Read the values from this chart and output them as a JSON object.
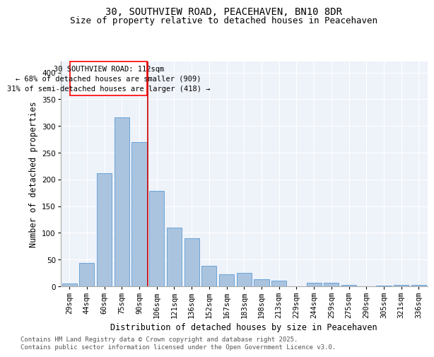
{
  "title_line1": "30, SOUTHVIEW ROAD, PEACEHAVEN, BN10 8DR",
  "title_line2": "Size of property relative to detached houses in Peacehaven",
  "xlabel": "Distribution of detached houses by size in Peacehaven",
  "ylabel": "Number of detached properties",
  "categories": [
    "29sqm",
    "44sqm",
    "60sqm",
    "75sqm",
    "90sqm",
    "106sqm",
    "121sqm",
    "136sqm",
    "152sqm",
    "167sqm",
    "183sqm",
    "198sqm",
    "213sqm",
    "229sqm",
    "244sqm",
    "259sqm",
    "275sqm",
    "290sqm",
    "305sqm",
    "321sqm",
    "336sqm"
  ],
  "values": [
    5,
    43,
    212,
    316,
    270,
    178,
    110,
    90,
    38,
    22,
    25,
    13,
    11,
    0,
    6,
    6,
    2,
    0,
    1,
    2,
    2
  ],
  "bar_color": "#aac4df",
  "bar_edge_color": "#5b9bd5",
  "annotation_text": "30 SOUTHVIEW ROAD: 112sqm\n← 68% of detached houses are smaller (909)\n31% of semi-detached houses are larger (418) →",
  "vline_x_index": 5,
  "vline_color": "#cc0000",
  "ylim": [
    0,
    420
  ],
  "yticks": [
    0,
    50,
    100,
    150,
    200,
    250,
    300,
    350,
    400
  ],
  "background_color": "#eef2f9",
  "footer_text": "Contains HM Land Registry data © Crown copyright and database right 2025.\nContains public sector information licensed under the Open Government Licence v3.0.",
  "title_fontsize": 10,
  "subtitle_fontsize": 9,
  "xlabel_fontsize": 8.5,
  "ylabel_fontsize": 8.5,
  "tick_fontsize": 7.5,
  "annotation_fontsize": 7.5,
  "footer_fontsize": 6.5
}
